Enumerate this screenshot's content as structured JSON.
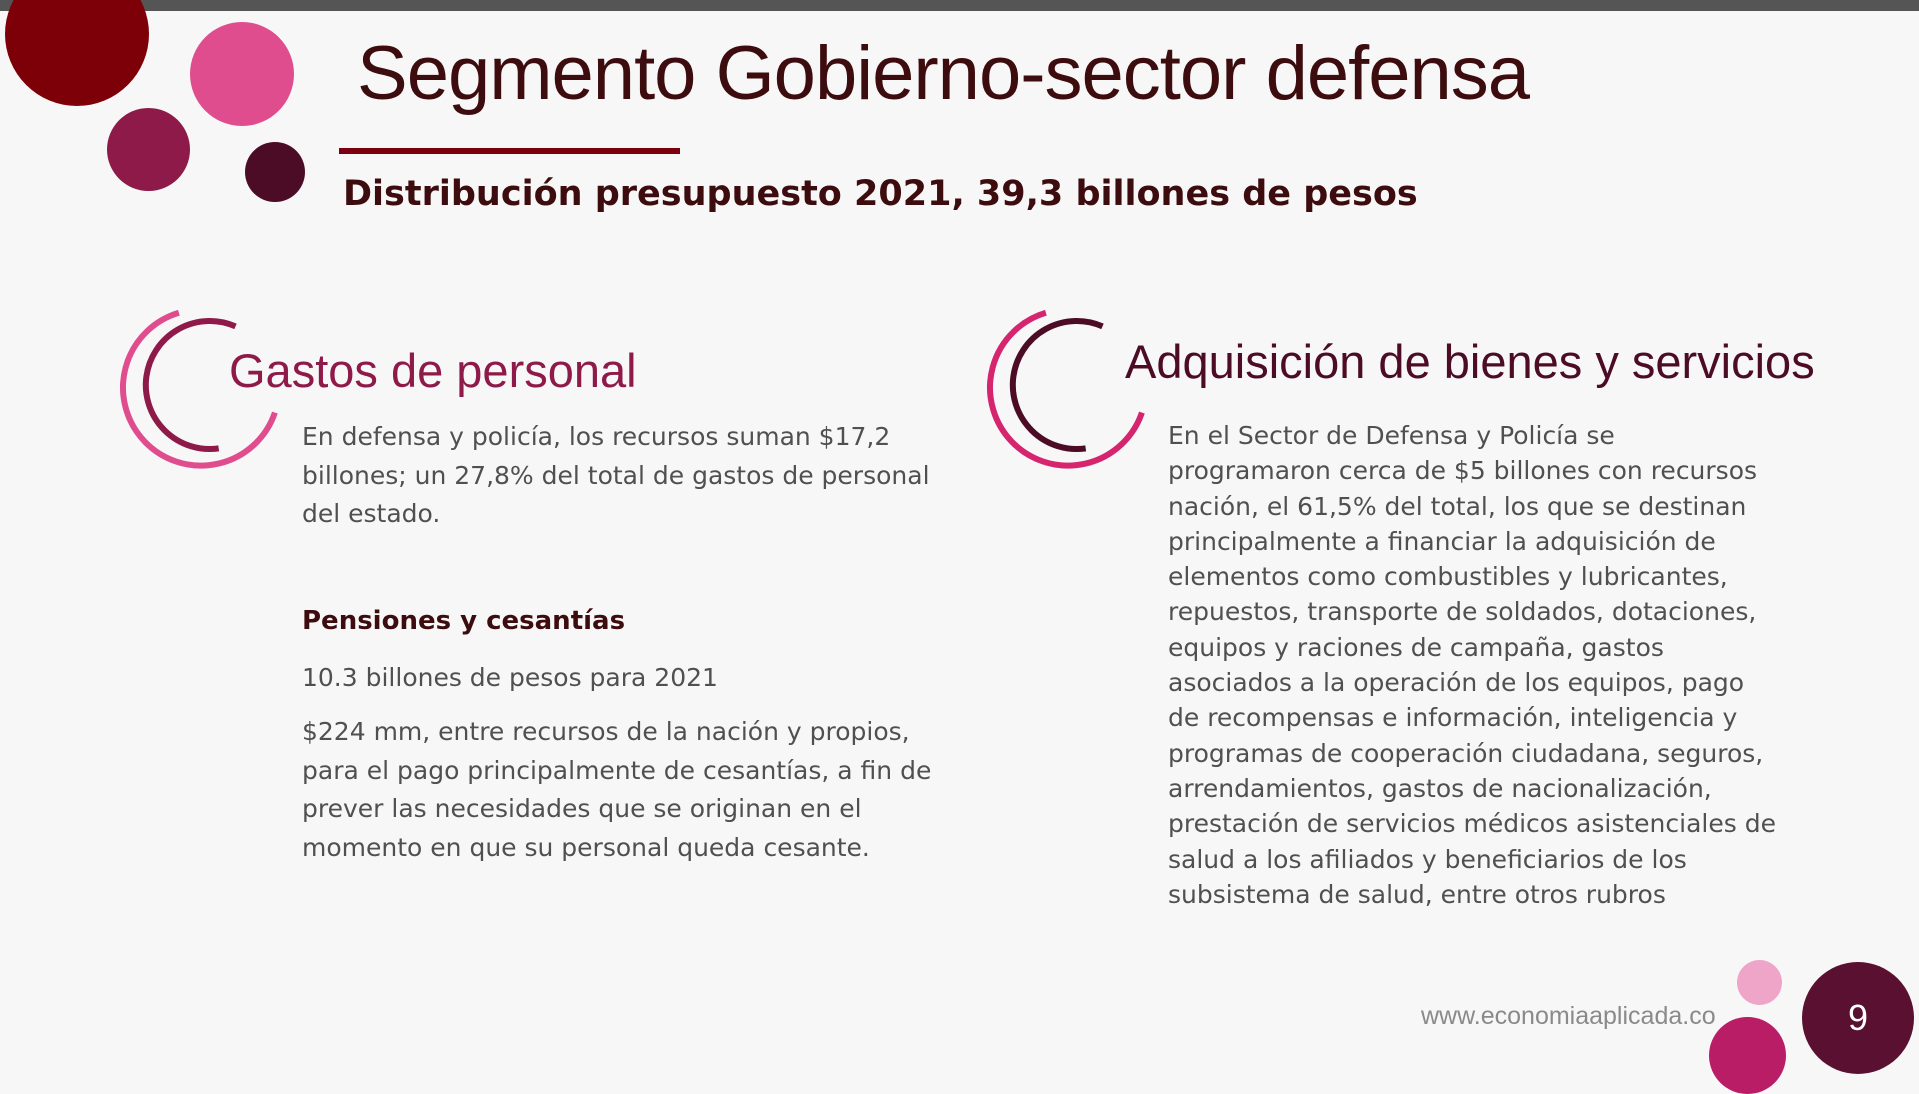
{
  "slide": {
    "title": "Segmento Gobierno-sector defensa",
    "subtitle": "Distribución presupuesto 2021, 39,3 billones de pesos",
    "page_number": "9",
    "website": "www.economiaaplicada.co"
  },
  "left_section": {
    "heading": "Gastos de personal",
    "intro": "En defensa y policía, los recursos suman $17,2 billones; un 27,8% del total de gastos de personal del estado.",
    "subheading": "Pensiones y cesantías",
    "amount": "10.3 billones de pesos para 2021",
    "detail": "$224 mm, entre recursos de la nación y propios, para el pago principalmente de cesantías, a fin de prever las necesidades que se originan en el momento en que su personal queda cesante."
  },
  "right_section": {
    "heading": "Adquisición de bienes y servicios",
    "body": "En el Sector de Defensa y Policía se programaron cerca de $5 billones con recursos nación, el 61,5% del total, los que se destinan principalmente a financiar la adquisición de elementos como combustibles y lubricantes, repuestos, transporte de soldados, dotaciones, equipos y raciones de campaña, gastos asociados a la operación de los equipos, pago de recompensas e información, inteligencia y programas de cooperación ciudadana, seguros, arrendamientos, gastos de nacionalización, prestación de servicios médicos asistenciales de salud a los afiliados y beneficiarios de los subsistema de salud, entre otros rubros"
  },
  "colors": {
    "dark_red": "#7d0008",
    "pink": "#e04d8e",
    "magenta": "#8e1a4a",
    "plum": "#4c0c26",
    "light_pink": "#eea5c7",
    "raspberry": "#b81d66",
    "page_badge": "#5a1030",
    "title_text": "#3d0c0e"
  }
}
